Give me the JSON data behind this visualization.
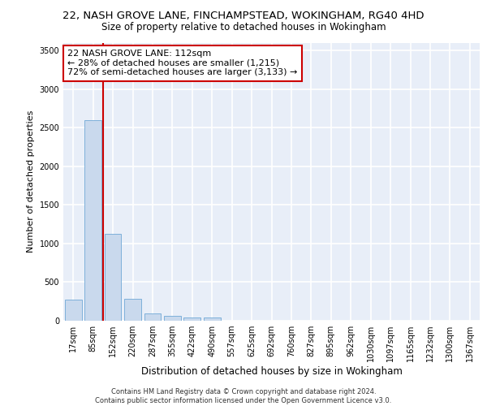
{
  "title1": "22, NASH GROVE LANE, FINCHAMPSTEAD, WOKINGHAM, RG40 4HD",
  "title2": "Size of property relative to detached houses in Wokingham",
  "xlabel": "Distribution of detached houses by size in Wokingham",
  "ylabel": "Number of detached properties",
  "categories": [
    "17sqm",
    "85sqm",
    "152sqm",
    "220sqm",
    "287sqm",
    "355sqm",
    "422sqm",
    "490sqm",
    "557sqm",
    "625sqm",
    "692sqm",
    "760sqm",
    "827sqm",
    "895sqm",
    "962sqm",
    "1030sqm",
    "1097sqm",
    "1165sqm",
    "1232sqm",
    "1300sqm",
    "1367sqm"
  ],
  "values": [
    270,
    2600,
    1120,
    280,
    90,
    60,
    45,
    45,
    0,
    0,
    0,
    0,
    0,
    0,
    0,
    0,
    0,
    0,
    0,
    0,
    0
  ],
  "bar_color": "#c9d9ed",
  "bar_edge_color": "#6fa8d6",
  "background_color": "#e8eef8",
  "grid_color": "#ffffff",
  "red_line_x": 1.5,
  "annotation_line1": "22 NASH GROVE LANE: 112sqm",
  "annotation_line2": "← 28% of detached houses are smaller (1,215)",
  "annotation_line3": "72% of semi-detached houses are larger (3,133) →",
  "annotation_box_color": "#ffffff",
  "annotation_box_edge": "#cc0000",
  "ylim": [
    0,
    3600
  ],
  "yticks": [
    0,
    500,
    1000,
    1500,
    2000,
    2500,
    3000,
    3500
  ],
  "footer": "Contains HM Land Registry data © Crown copyright and database right 2024.\nContains public sector information licensed under the Open Government Licence v3.0.",
  "title1_fontsize": 9.5,
  "title2_fontsize": 8.5,
  "ylabel_fontsize": 8,
  "xlabel_fontsize": 8.5,
  "tick_fontsize": 7,
  "annotation_fontsize": 8,
  "footer_fontsize": 6
}
